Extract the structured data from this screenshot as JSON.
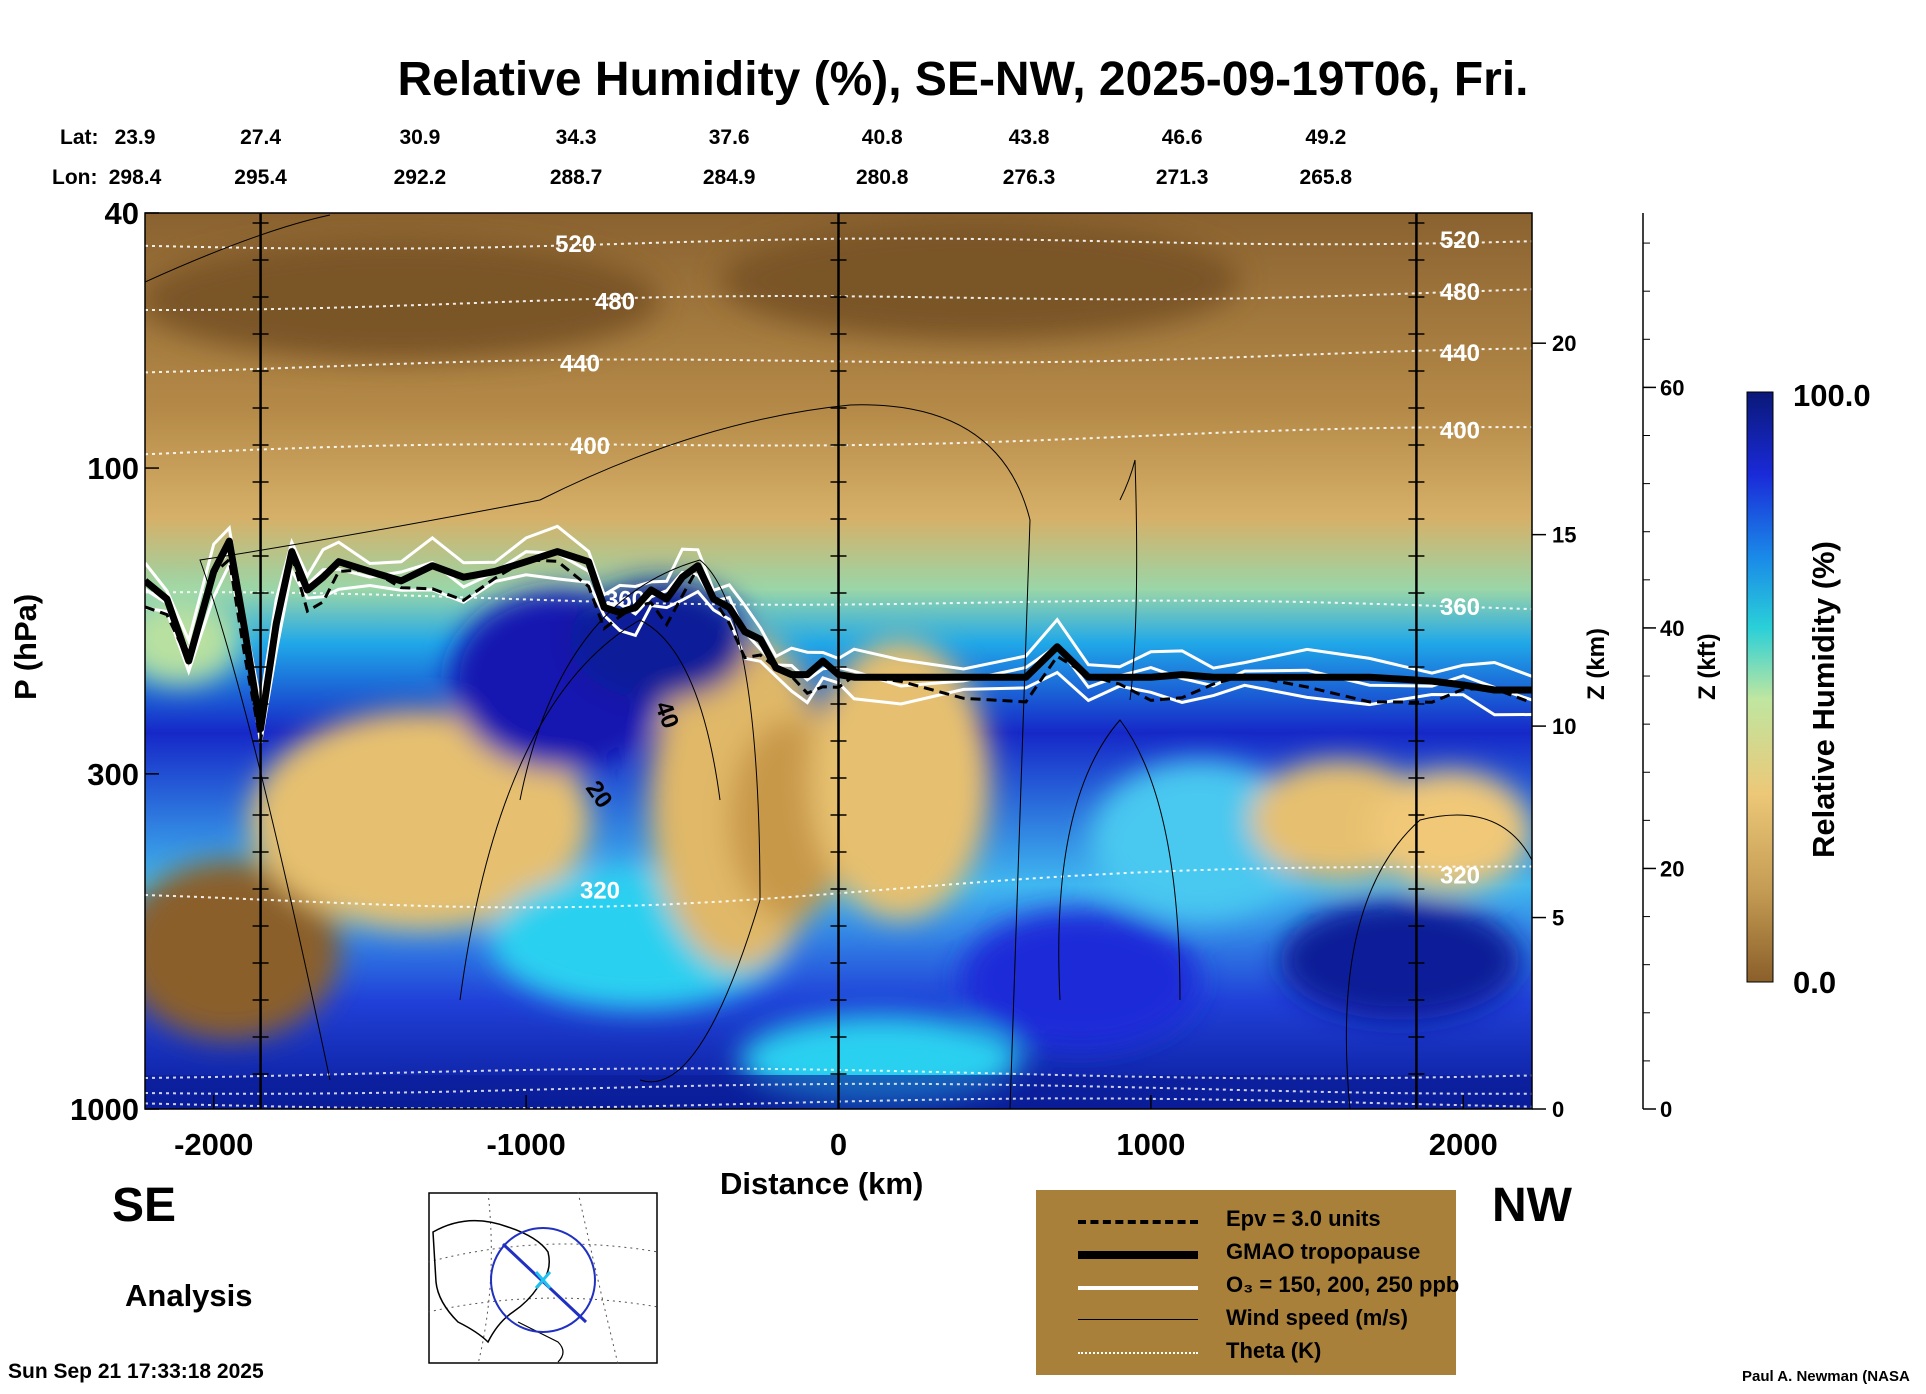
{
  "title": "Relative Humidity (%), SE-NW, 2025-09-19T06, Fri.",
  "geo": {
    "lat_label": "Lat:",
    "lon_label": "Lon:",
    "lat": [
      "23.9",
      "27.4",
      "30.9",
      "34.3",
      "37.6",
      "40.8",
      "43.8",
      "46.6",
      "49.2"
    ],
    "lon": [
      "298.4",
      "295.4",
      "292.2",
      "288.7",
      "284.9",
      "280.8",
      "276.3",
      "271.3",
      "265.8"
    ]
  },
  "direction": {
    "left": "SE",
    "right": "NW"
  },
  "analysis_label": "Analysis",
  "timestamp": "Sun Sep 21 17:33:18 2025",
  "credit": "Paul A. Newman (NASA",
  "colorbar": {
    "max_label": "100.0",
    "min_label": "0.0",
    "title": "Relative Humidity (%)"
  },
  "legend": [
    {
      "label": "Epv = 3.0 units",
      "style": "dashed-thick"
    },
    {
      "label": "GMAO tropopause",
      "style": "solid-heavy"
    },
    {
      "label": "O₃ = 150, 200, 250 ppb",
      "style": "white"
    },
    {
      "label": "Wind speed (m/s)",
      "style": "solid-thin"
    },
    {
      "label": "Theta (K)",
      "style": "dotted-white"
    }
  ],
  "chart_data": {
    "type": "heatmap",
    "title": "Relative Humidity (%), SE-NW, 2025-09-19T06, Fri.",
    "xlabel": "Distance (km)",
    "ylabel": "P (hPa)",
    "y2label": "Z (km)",
    "y3label": "Z (kft)",
    "xlim": [
      -2220,
      2220
    ],
    "ylim": [
      1000,
      40
    ],
    "x_ticks": [
      -2000,
      -1000,
      0,
      1000,
      2000
    ],
    "x_tick_labels": [
      "-2000",
      "-1000",
      "0",
      "1000",
      "2000"
    ],
    "p_ticks": [
      1000,
      300,
      100,
      40
    ],
    "p_tick_labels": [
      "1000",
      "300",
      "100",
      "40"
    ],
    "z_km_ticks": [
      0,
      5,
      10,
      15,
      20
    ],
    "z_km_tick_labels": [
      "0",
      "5",
      "10",
      "15",
      "20"
    ],
    "z_kft_ticks": [
      0,
      20,
      40,
      60
    ],
    "z_kft_tick_labels": [
      "0",
      "20",
      "40",
      "60"
    ],
    "vertical_markers_km": [
      -1850,
      0,
      1850
    ],
    "tropopause_hPa": {
      "x": [
        -2220,
        -2150,
        -2080,
        -2000,
        -1950,
        -1900,
        -1850,
        -1800,
        -1750,
        -1700,
        -1650,
        -1600,
        -1500,
        -1400,
        -1300,
        -1200,
        -1100,
        -1000,
        -900,
        -800,
        -750,
        -700,
        -650,
        -600,
        -550,
        -500,
        -450,
        -400,
        -350,
        -300,
        -250,
        -200,
        -150,
        -100,
        -50,
        0,
        50,
        200,
        400,
        600,
        700,
        800,
        900,
        1000,
        1100,
        1200,
        1300,
        1500,
        1700,
        1900,
        2000,
        2100,
        2220
      ],
      "p": [
        150,
        160,
        200,
        145,
        130,
        180,
        255,
        175,
        135,
        155,
        148,
        140,
        145,
        150,
        142,
        148,
        145,
        140,
        135,
        140,
        165,
        168,
        165,
        155,
        160,
        148,
        142,
        160,
        165,
        180,
        185,
        205,
        210,
        210,
        200,
        210,
        212,
        212,
        212,
        212,
        190,
        212,
        212,
        212,
        210,
        212,
        212,
        212,
        212,
        215,
        218,
        222,
        222
      ]
    },
    "theta_K": [
      {
        "level": 520,
        "label": "520",
        "p_left": 45,
        "p_right": 44
      },
      {
        "level": 480,
        "label": "480",
        "p_left": 56,
        "p_right": 53
      },
      {
        "level": 440,
        "label": "440",
        "p_left": 70,
        "p_right": 66
      },
      {
        "level": 400,
        "label": "400",
        "p_left": 95,
        "p_right": 87
      },
      {
        "level": 360,
        "label": "360",
        "p_left": 158,
        "p_right": 165
      },
      {
        "level": 320,
        "label": "320",
        "p_left": 470,
        "p_right": 430
      }
    ],
    "wind_speed_labels_ms": [
      "40",
      "20"
    ],
    "rh_range_percent": [
      0,
      100
    ]
  }
}
